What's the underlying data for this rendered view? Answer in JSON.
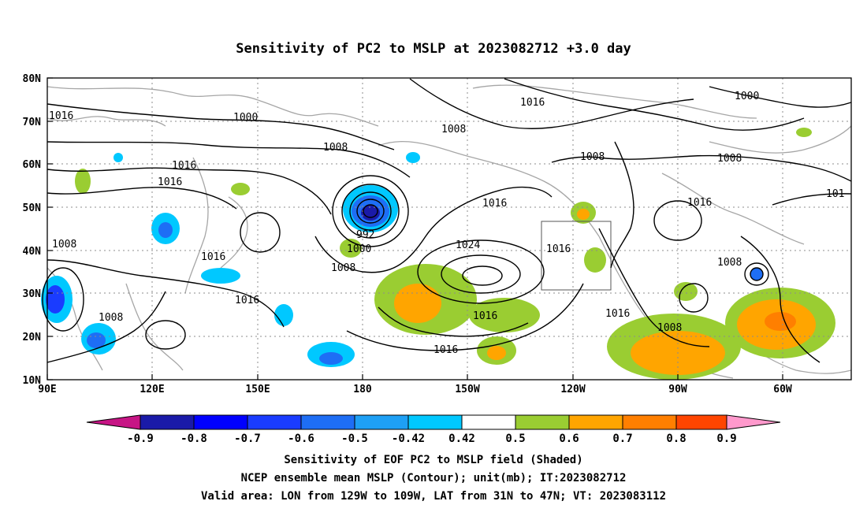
{
  "title": "Sensitivity of PC2 to MSLP at 2023082712 +3.0 day",
  "axes": {
    "lat_labels": [
      "80N",
      "70N",
      "60N",
      "50N",
      "40N",
      "30N",
      "20N",
      "10N"
    ],
    "lon_labels": [
      "90E",
      "120E",
      "150E",
      "180",
      "150W",
      "120W",
      "90W",
      "60W"
    ]
  },
  "contour_labels": [
    "1016",
    "1000",
    "1016",
    "1008",
    "1000",
    "1008",
    "1016",
    "1016",
    "1008",
    "1008",
    "1016",
    "1016",
    "992",
    "1000",
    "1008",
    "1016",
    "1024",
    "1016",
    "1008",
    "1016",
    "1008",
    "1016",
    "101",
    "1008",
    "1016",
    "1008",
    "1016"
  ],
  "colorbar": {
    "labels": [
      "-0.9",
      "-0.8",
      "-0.7",
      "-0.6",
      "-0.5",
      "-0.42",
      "0.42",
      "0.5",
      "0.6",
      "0.7",
      "0.8",
      "0.9"
    ],
    "colors": [
      "#1a1aa8",
      "#0000ff",
      "#1a3cff",
      "#1e6ef5",
      "#1ea0f5",
      "#00c8ff",
      "#ffffff",
      "#9acd32",
      "#ffa500",
      "#ff7f00",
      "#ff4500",
      "#ff0000"
    ],
    "left_end_color": "#c71585",
    "right_end_color": "#ff99cc"
  },
  "footer": {
    "line1": "Sensitivity of EOF PC2 to MSLP field (Shaded)",
    "line2": "NCEP ensemble mean MSLP (Contour); unit(mb); IT:2023082712",
    "line3": "Valid area: LON from 129W to 109W, LAT from 31N to 47N; VT: 2023083112"
  }
}
